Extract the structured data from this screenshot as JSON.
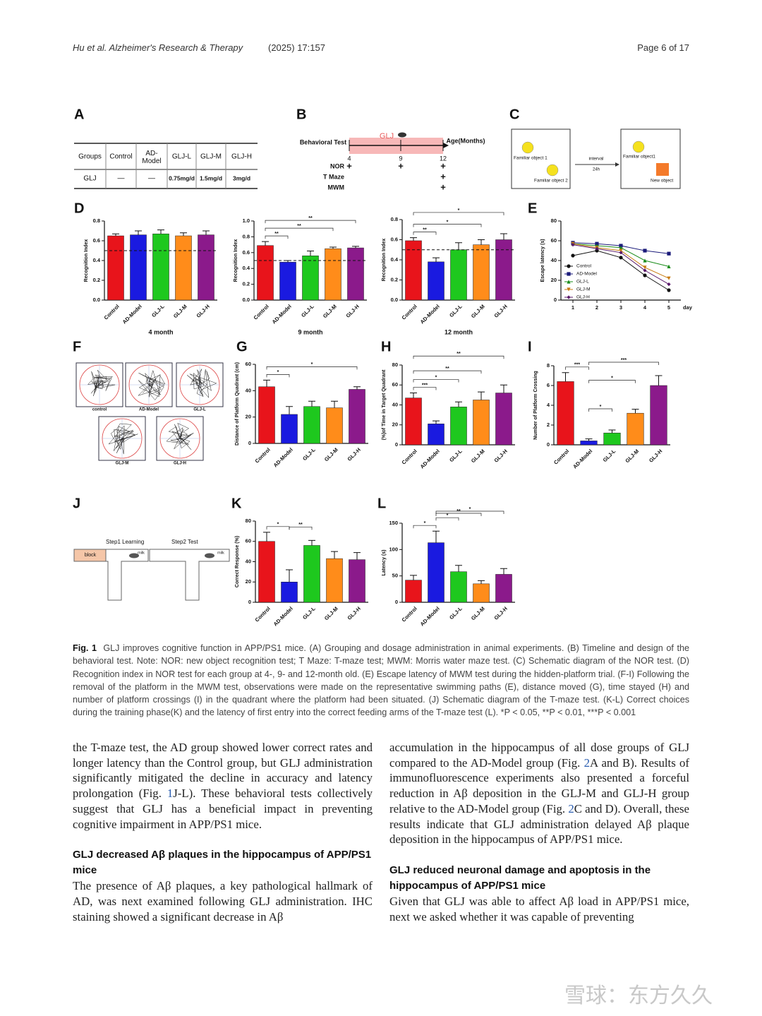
{
  "header": {
    "left": "Hu et al. Alzheimer's Research & Therapy",
    "volume": "(2025) 17:157",
    "page": "Page 6 of 17"
  },
  "schematics": {
    "A": {
      "panel": "A",
      "headers": [
        "Groups",
        "Control",
        "AD-Model",
        "GLJ-L",
        "GLJ-M",
        "GLJ-H"
      ],
      "row": [
        "GLJ",
        "—",
        "—",
        "0.75mg/d",
        "1.5mg/d",
        "3mg/d"
      ]
    },
    "B": {
      "panel": "B",
      "drug": "GLJ",
      "title": "Behavioral Test",
      "axis": "Age(Months)",
      "ticks": [
        4,
        9,
        12
      ],
      "rows": [
        {
          "name": "NOR",
          "marks": [
            "+",
            "+",
            "+"
          ]
        },
        {
          "name": "T Maze",
          "marks": [
            null,
            null,
            "+"
          ]
        },
        {
          "name": "MWM",
          "marks": [
            null,
            null,
            "+"
          ]
        }
      ]
    },
    "C": {
      "panel": "C",
      "obj1": "Familiar object 1",
      "obj2": "Familiar object 2",
      "interval": "interval",
      "time": "24h",
      "obj3": "Familiar object1",
      "obj4": "New object"
    },
    "F": {
      "panel": "F",
      "labels": [
        "control",
        "AD-Model",
        "GLJ-L",
        "GLJ-M",
        "GLJ-H"
      ]
    },
    "J": {
      "panel": "J",
      "step1": "Step1  Learning",
      "step2": "Step2  Test",
      "block": "block",
      "milk1": "milk",
      "milk2": "milk"
    }
  },
  "chart_data": [
    {
      "type": "bar",
      "panel": "D",
      "ylabel": "Recognition Index",
      "xlabel": "4 month",
      "categories": [
        "Control",
        "AD-Model",
        "GLJ-L",
        "GLJ-M",
        "GLJ-H"
      ],
      "colors": [
        "#e8141b",
        "#1a1ae0",
        "#1ec81e",
        "#ff8c1a",
        "#8b1a8b"
      ],
      "values": [
        0.65,
        0.66,
        0.67,
        0.65,
        0.66
      ],
      "errors": [
        0.02,
        0.04,
        0.04,
        0.03,
        0.04
      ],
      "ylim": [
        0,
        0.8
      ],
      "yticks": [
        {
          "value": 0,
          "label": "0.0"
        },
        0.2,
        0.4,
        0.6,
        0.8
      ],
      "reference_line": 0.5,
      "brackets": []
    },
    {
      "type": "bar",
      "ylabel": "Recognition Index",
      "xlabel": "9 month",
      "categories": [
        "Control",
        "AD-Model",
        "GLJ-L",
        "GLJ-M",
        "GLJ-H"
      ],
      "colors": [
        "#e8141b",
        "#1a1ae0",
        "#1ec81e",
        "#ff8c1a",
        "#8b1a8b"
      ],
      "values": [
        0.69,
        0.48,
        0.56,
        0.65,
        0.66
      ],
      "errors": [
        0.05,
        0.02,
        0.06,
        0.02,
        0.02
      ],
      "ylim": [
        0,
        1
      ],
      "yticks": [
        {
          "value": 0,
          "label": "0.0"
        },
        0.2,
        0.4,
        0.6,
        0.8,
        {
          "value": 1,
          "label": "1.0"
        }
      ],
      "reference_line": 0.5,
      "brackets": [
        {
          "span": [
            0,
            1
          ],
          "label": "**"
        },
        {
          "span": [
            0,
            3
          ],
          "label": "**"
        },
        {
          "span": [
            0,
            4
          ],
          "label": "**"
        }
      ]
    },
    {
      "type": "bar",
      "ylabel": "Recognition Index",
      "xlabel": "12 month",
      "categories": [
        "Control",
        "AD-Model",
        "GLJ-L",
        "GLJ-M",
        "GLJ-H"
      ],
      "colors": [
        "#e8141b",
        "#1a1ae0",
        "#1ec81e",
        "#ff8c1a",
        "#8b1a8b"
      ],
      "values": [
        0.59,
        0.38,
        0.5,
        0.55,
        0.6
      ],
      "errors": [
        0.03,
        0.04,
        0.07,
        0.05,
        0.06
      ],
      "ylim": [
        0,
        0.8
      ],
      "yticks": [
        {
          "value": 0,
          "label": "0.0"
        },
        0.2,
        0.4,
        0.6,
        0.8
      ],
      "reference_line": 0.5,
      "brackets": [
        {
          "span": [
            0,
            1
          ],
          "label": "**"
        },
        {
          "span": [
            0,
            3
          ],
          "label": "*"
        },
        {
          "span": [
            0,
            4
          ],
          "label": "*"
        }
      ]
    },
    {
      "type": "line",
      "panel": "E",
      "ylabel": "Escape latency (s)",
      "xlabel": "day",
      "x": [
        1,
        2,
        3,
        4,
        5
      ],
      "xlim": [
        0.5,
        5.5
      ],
      "xticks": [
        1,
        2,
        3,
        4,
        5
      ],
      "ylim": [
        0,
        80
      ],
      "yticks": [
        0,
        20,
        40,
        60,
        80
      ],
      "series": [
        {
          "name": "Control",
          "color": "#111111",
          "marker": "circle",
          "values": [
            45,
            50,
            43,
            25,
            10
          ]
        },
        {
          "name": "AD-Model",
          "color": "#1a1a7a",
          "marker": "square",
          "values": [
            58,
            57,
            55,
            50,
            47
          ]
        },
        {
          "name": "GLJ-L",
          "color": "#1a8c1a",
          "marker": "triangle",
          "values": [
            57,
            55,
            53,
            40,
            34
          ]
        },
        {
          "name": "GLJ-M",
          "color": "#c87a10",
          "marker": "triangle-down",
          "values": [
            57,
            53,
            50,
            33,
            22
          ]
        },
        {
          "name": "GLJ-H",
          "color": "#5a1a6a",
          "marker": "diamond",
          "values": [
            56,
            52,
            48,
            30,
            16
          ]
        }
      ]
    },
    {
      "type": "bar",
      "panel": "G",
      "ylabel": "Distance of Platform Quadrant (cm)",
      "categories": [
        "Control",
        "AD-Model",
        "GLJ-L",
        "GLJ-M",
        "GLJ-H"
      ],
      "colors": [
        "#e8141b",
        "#1a1ae0",
        "#1ec81e",
        "#ff8c1a",
        "#8b1a8b"
      ],
      "values": [
        43,
        22,
        28,
        27,
        41
      ],
      "errors": [
        5,
        6,
        4,
        5,
        2
      ],
      "ylim": [
        0,
        60
      ],
      "yticks": [
        0,
        20,
        40,
        60
      ],
      "brackets": [
        {
          "span": [
            0,
            1
          ],
          "label": "*"
        },
        {
          "span": [
            0,
            4
          ],
          "label": "*"
        }
      ]
    },
    {
      "type": "bar",
      "panel": "H",
      "ylabel": "(%)of Time in Target Quadrant",
      "categories": [
        "Control",
        "AD-Model",
        "GLJ-L",
        "GLJ-M",
        "GLJ-H"
      ],
      "colors": [
        "#e8141b",
        "#1a1ae0",
        "#1ec81e",
        "#ff8c1a",
        "#8b1a8b"
      ],
      "values": [
        47,
        21,
        38,
        45,
        52
      ],
      "errors": [
        5,
        3,
        5,
        8,
        8
      ],
      "ylim": [
        0,
        80
      ],
      "yticks": [
        0,
        20,
        40,
        60,
        80
      ],
      "brackets": [
        {
          "span": [
            0,
            1
          ],
          "label": "***"
        },
        {
          "span": [
            0,
            2
          ],
          "label": "*"
        },
        {
          "span": [
            0,
            3
          ],
          "label": "**"
        },
        {
          "span": [
            0,
            4
          ],
          "label": "**"
        }
      ]
    },
    {
      "type": "bar",
      "panel": "I",
      "ylabel": "Number of Platform Crossing",
      "categories": [
        "Control",
        "AD-Model",
        "GLJ-L",
        "GLJ-M",
        "GLJ-H"
      ],
      "colors": [
        "#e8141b",
        "#1a1ae0",
        "#1ec81e",
        "#ff8c1a",
        "#8b1a8b"
      ],
      "values": [
        6.4,
        0.4,
        1.2,
        3.2,
        6.0
      ],
      "errors": [
        0.9,
        0.2,
        0.3,
        0.4,
        1.0
      ],
      "ylim": [
        0,
        8
      ],
      "yticks": [
        0,
        2,
        4,
        6,
        8
      ],
      "brackets": [
        {
          "span": [
            0,
            1
          ],
          "label": "***"
        },
        {
          "span": [
            1,
            4
          ],
          "label": "***"
        },
        {
          "span": [
            1,
            2
          ],
          "label": "*"
        },
        {
          "span": [
            1,
            3
          ],
          "label": "*"
        }
      ]
    },
    {
      "type": "bar",
      "panel": "K",
      "ylabel": "Correct Response (%)",
      "categories": [
        "Control",
        "AD-Model",
        "GLJ-L",
        "GLJ-M",
        "GLJ-H"
      ],
      "colors": [
        "#e8141b",
        "#1a1ae0",
        "#1ec81e",
        "#ff8c1a",
        "#8b1a8b"
      ],
      "values": [
        60,
        20,
        56,
        43,
        42
      ],
      "errors": [
        9,
        12,
        5,
        7,
        7
      ],
      "ylim": [
        0,
        80
      ],
      "yticks": [
        0,
        20,
        40,
        60,
        80
      ],
      "brackets": [
        {
          "span": [
            0,
            1
          ],
          "label": "*"
        },
        {
          "span": [
            1,
            2
          ],
          "label": "**"
        }
      ]
    },
    {
      "type": "bar",
      "panel": "L",
      "ylabel": "Latency (s)",
      "categories": [
        "Control",
        "AD-Model",
        "GLJ-L",
        "GLJ-M",
        "GLJ-H"
      ],
      "colors": [
        "#e8141b",
        "#1a1ae0",
        "#1ec81e",
        "#ff8c1a",
        "#8b1a8b"
      ],
      "values": [
        42,
        113,
        58,
        35,
        53
      ],
      "errors": [
        9,
        22,
        12,
        6,
        11
      ],
      "ylim": [
        0,
        150
      ],
      "yticks": [
        0,
        50,
        100,
        150
      ],
      "brackets": [
        {
          "span": [
            0,
            1
          ],
          "label": "*"
        },
        {
          "span": [
            1,
            2
          ],
          "label": "*"
        },
        {
          "span": [
            1,
            3
          ],
          "label": "**"
        },
        {
          "span": [
            1,
            4
          ],
          "label": "*"
        }
      ]
    }
  ],
  "caption": {
    "label": "Fig. 1",
    "text": "GLJ improves cognitive function in APP/PS1 mice. (A) Grouping and dosage administration in animal experiments. (B) Timeline and design of the behavioral test. Note: NOR: new object recognition test; T Maze: T-maze test; MWM: Morris water maze test. (C) Schematic diagram of the NOR test. (D) Recognition index in NOR test for each group at 4-, 9- and 12-month old. (E) Escape latency of MWM test during the hidden-platform trial. (F-I) Following the removal of the platform in the MWM test, observations were made on the representative swimming paths (E), distance moved (G), time stayed (H) and number of platform crossings (I) in the quadrant where the platform had been situated. (J) Schematic diagram of the T-maze test. (K-L) Correct choices during the training phase(K) and the latency of first entry into the correct feeding arms of the T-maze test (L). *P < 0.05, **P < 0.01, ***P < 0.001"
  },
  "body": {
    "p1": [
      "the T-maze test, the AD group showed lower correct rates and longer latency than the Control group, but GLJ administration significantly mitigated the decline in accuracy and latency prolongation (Fig. ",
      "1",
      "J-L). These behavioral tests collectively suggest that GLJ has a beneficial impact in preventing cognitive impairment in APP/PS1 mice."
    ],
    "h1": "GLJ decreased Aβ plaques in the hippocampus of APP/PS1 mice",
    "p2": "The presence of Aβ plaques, a key pathological hallmark of AD, was next examined following GLJ administration. IHC staining showed a significant decrease in Aβ",
    "p3": [
      "accumulation in the hippocampus of all dose groups of GLJ compared to the AD-Model group (Fig. ",
      "2",
      "A and B). Results of immunofluorescence experiments also presented a forceful reduction in Aβ deposition in the GLJ-M and GLJ-H group relative to the AD-Model group (Fig. ",
      "2",
      "C and D). Overall, these results indicate that GLJ administration delayed Aβ plaque deposition in the hippocampus of APP/PS1 mice."
    ],
    "h2": "GLJ reduced neuronal damage and apoptosis in the hippocampus of APP/PS1 mice",
    "p4": "Given that GLJ was able to affect Aβ load in APP/PS1 mice, next we asked whether it was capable of preventing"
  },
  "watermark": "雪球：东方久久"
}
